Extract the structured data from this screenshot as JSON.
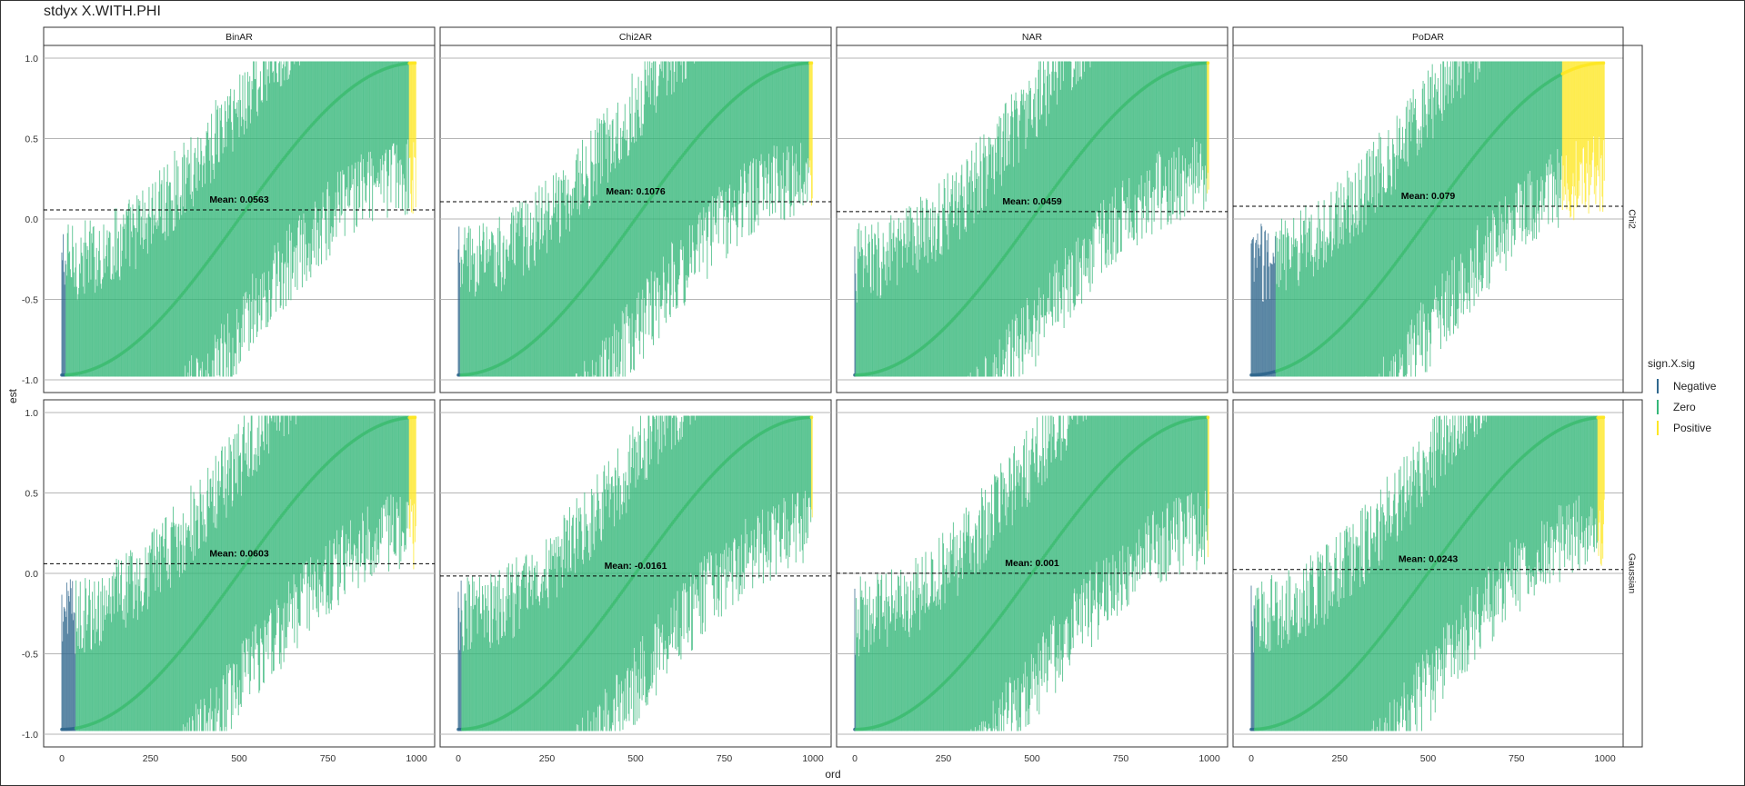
{
  "title": "stdyx X.WITH.PHI",
  "legend": {
    "title": "sign.X.sig",
    "items": [
      {
        "label": "Negative",
        "color": "#31688e"
      },
      {
        "label": "Zero",
        "color": "#35b779"
      },
      {
        "label": "Positive",
        "color": "#fde725"
      }
    ]
  },
  "chart_data": {
    "type": "scatter",
    "description_free": true,
    "xlabel": "ord",
    "ylabel": "est",
    "xlim": [
      0,
      1000
    ],
    "ylim": [
      -1,
      1
    ],
    "x_ticks": [
      "0",
      "250",
      "500",
      "750",
      "1000"
    ],
    "x_tick_values": [
      0,
      250,
      500,
      750,
      1000
    ],
    "y_ticks": [
      "-1.0",
      "-0.5",
      "0.0",
      "0.5",
      "1.0"
    ],
    "y_tick_values": [
      -1,
      -0.5,
      0,
      0.5,
      1
    ],
    "grid": true,
    "legend_position": "right",
    "col_facets": [
      "BinAR",
      "Chi2AR",
      "NAR",
      "PoDAR"
    ],
    "row_facets": [
      "Chi2",
      "Gaussian"
    ],
    "panels": [
      {
        "col": "BinAR",
        "row": "Chi2",
        "mean": 0.0563,
        "mean_label": "Mean: 0.0563",
        "neg_n": 12,
        "pos_n": 20
      },
      {
        "col": "Chi2AR",
        "row": "Chi2",
        "mean": 0.1076,
        "mean_label": "Mean: 0.1076",
        "neg_n": 5,
        "pos_n": 10
      },
      {
        "col": "NAR",
        "row": "Chi2",
        "mean": 0.0459,
        "mean_label": "Mean: 0.0459",
        "neg_n": 4,
        "pos_n": 6
      },
      {
        "col": "PoDAR",
        "row": "Chi2",
        "mean": 0.079,
        "mean_label": "Mean: 0.079",
        "neg_n": 70,
        "pos_n": 120
      },
      {
        "col": "BinAR",
        "row": "Gaussian",
        "mean": 0.0603,
        "mean_label": "Mean: 0.0603",
        "neg_n": 40,
        "pos_n": 20
      },
      {
        "col": "Chi2AR",
        "row": "Gaussian",
        "mean": -0.0161,
        "mean_label": "Mean: -0.0161",
        "neg_n": 10,
        "pos_n": 4
      },
      {
        "col": "NAR",
        "row": "Gaussian",
        "mean": 0.001,
        "mean_label": "Mean: 0.001",
        "neg_n": 4,
        "pos_n": 4
      },
      {
        "col": "PoDAR",
        "row": "Gaussian",
        "mean": 0.0243,
        "mean_label": "Mean: 0.0243",
        "neg_n": 10,
        "pos_n": 20
      }
    ]
  }
}
